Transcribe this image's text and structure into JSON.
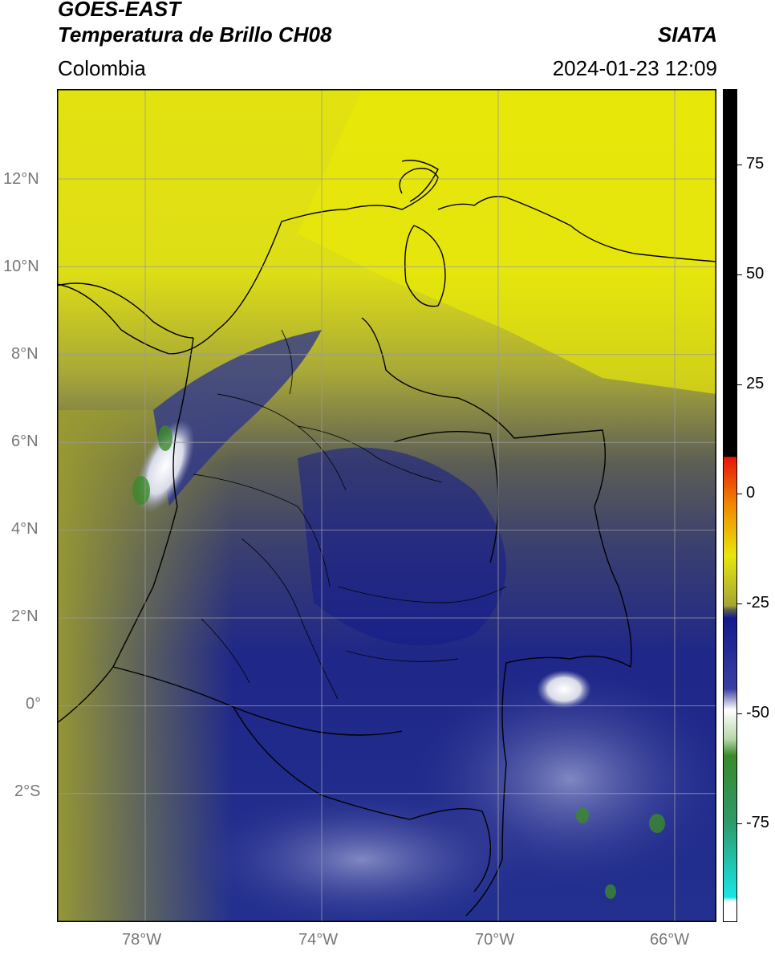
{
  "header": {
    "satellite": "GOES-EAST",
    "product": "Temperatura de Brillo CH08",
    "brand": "SIATA",
    "region": "Colombia",
    "datetime": "2024-01-23 12:09"
  },
  "map": {
    "lat_labels": [
      "12°N",
      "10°N",
      "8°N",
      "6°N",
      "4°N",
      "2°N",
      "0°",
      "2°S"
    ],
    "lon_labels": [
      "78°W",
      "74°W",
      "70°W",
      "66°W"
    ],
    "gridline_color": "#9a9a9a",
    "border_color": "#000000"
  },
  "colorbar": {
    "tick_labels": [
      "75",
      "50",
      "25",
      "0",
      "-25",
      "-50",
      "-75"
    ],
    "colors": {
      "black": "#000000",
      "red": "#e8140a",
      "orange": "#f08a00",
      "yellow": "#e8e60c",
      "olive": "#7d7e3c",
      "navy": "#141a8c",
      "white": "#ffffff",
      "green": "#3a8a2a",
      "cyan": "#18e6e6"
    }
  }
}
